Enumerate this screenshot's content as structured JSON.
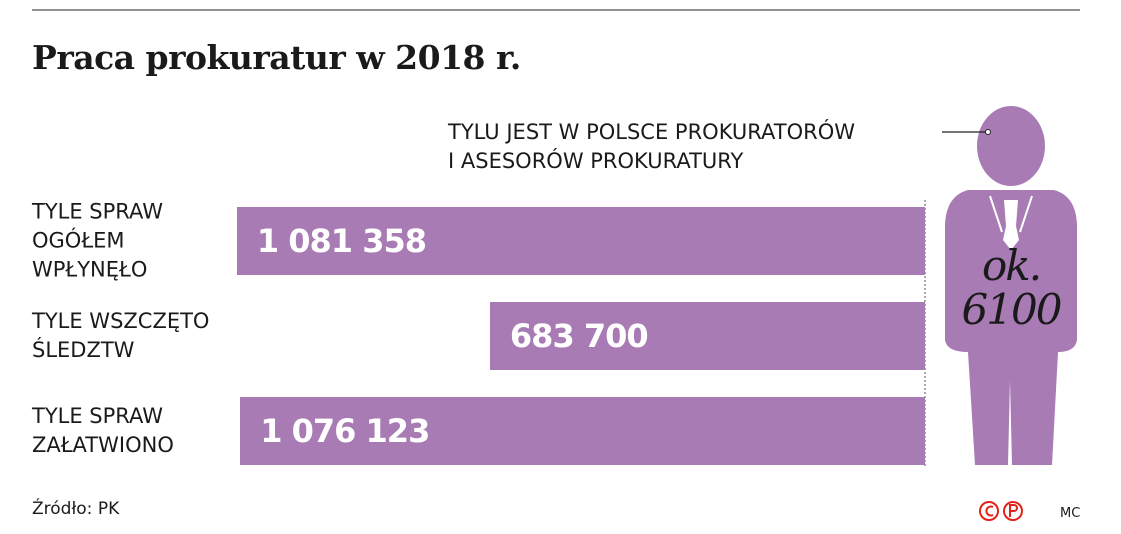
{
  "chart_data": {
    "type": "bar",
    "orientation": "horizontal",
    "title": "Praca prokuratur w 2018 r.",
    "categories": [
      "TYLE SPRAW\nOGÓŁEM\nWPŁYNĘŁO",
      "TYLE WSZCZĘTO\nŚLEDZTW",
      "TYLE SPRAW\nZAŁATWIONO"
    ],
    "values": [
      1081358,
      683700,
      1076123
    ],
    "value_labels": [
      "1 081 358",
      "683 700",
      "1 076 123"
    ],
    "color": "#a87bb5",
    "xlim": [
      0,
      1100000
    ],
    "annotation": "TYLU JEST W POLSCE PROKURATORÓW\nI ASESORÓW PROKURATURY",
    "annotation_value": 6100,
    "annotation_value_label": "ok.\n6100",
    "source": "Źródło: PK",
    "credit": "MC"
  }
}
